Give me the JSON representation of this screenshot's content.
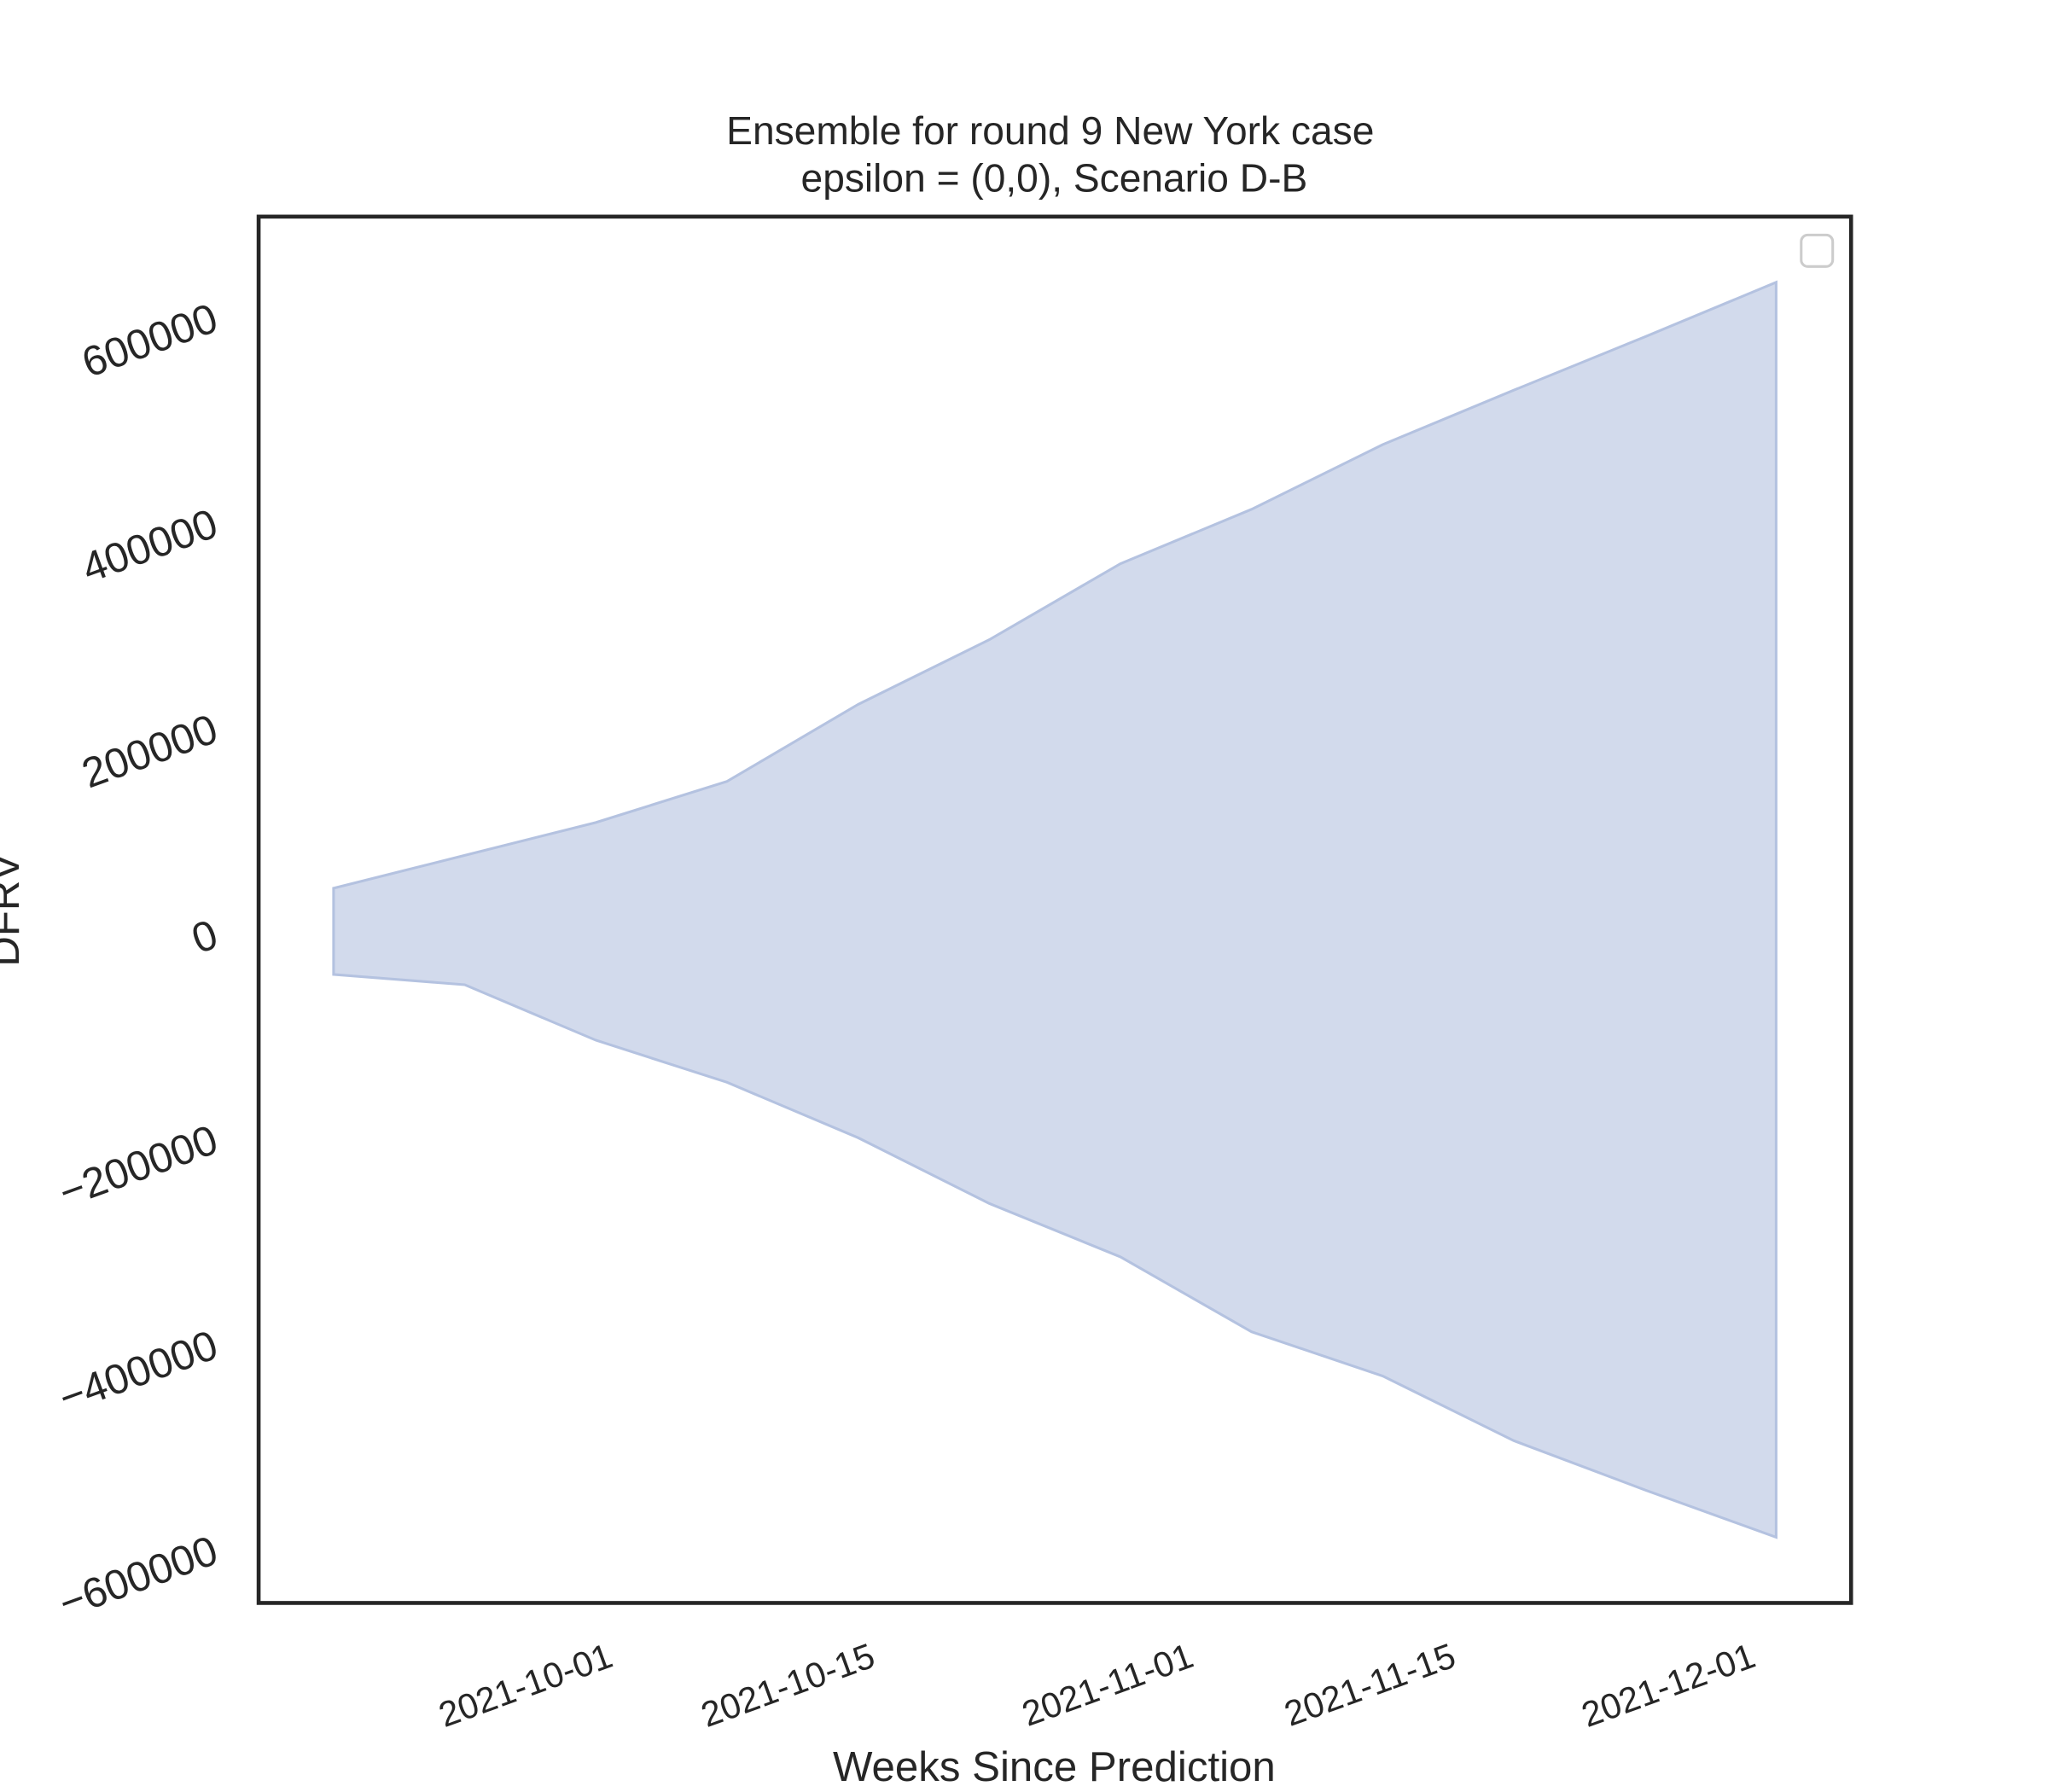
{
  "chart_data": {
    "type": "fill_between",
    "title": "Ensemble for round 9 New York case",
    "subtitle": "epsilon = (0,0), Scenario D-B",
    "x_label": "Weeks Since Prediction",
    "y_label": "DFRV",
    "x": [
      "2021-09-17",
      "2021-09-24",
      "2021-10-01",
      "2021-10-08",
      "2021-10-15",
      "2021-10-22",
      "2021-10-29",
      "2021-11-05",
      "2021-11-12",
      "2021-11-19",
      "2021-11-26",
      "2021-12-03"
    ],
    "upper": [
      46000,
      78000,
      110000,
      150000,
      225000,
      288000,
      362000,
      415000,
      478000,
      531000,
      583000,
      636000
    ],
    "lower": [
      -38000,
      -48000,
      -102000,
      -143000,
      -197000,
      -261000,
      -313000,
      -386000,
      -429000,
      -492000,
      -540000,
      -586000
    ],
    "color": "#b4c2e0",
    "xlim": [
      "2021-09-13",
      "2021-12-07"
    ],
    "xticks": [
      "2021-10-01",
      "2021-10-15",
      "2021-11-01",
      "2021-11-15",
      "2021-12-01"
    ],
    "ylim": [
      -650000,
      700000
    ],
    "yticks": [
      {
        "value": -600000,
        "label": "−600000"
      },
      {
        "value": -400000,
        "label": "−400000"
      },
      {
        "value": -200000,
        "label": "−200000"
      },
      0,
      200000,
      400000,
      600000
    ],
    "grid": false,
    "legend": "upper right"
  }
}
